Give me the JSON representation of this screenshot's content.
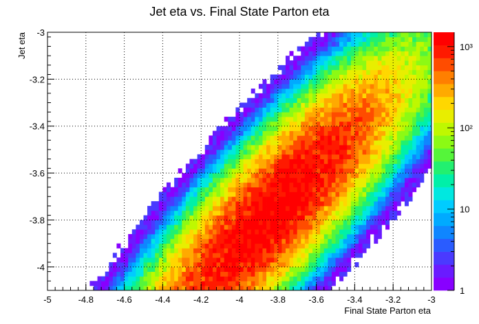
{
  "chart_data": {
    "type": "heatmap",
    "title": "Jet eta vs. Final State Parton eta",
    "xlabel": "Final State Parton eta",
    "ylabel": "Jet eta",
    "xlim": [
      -5,
      -3
    ],
    "ylim": [
      -4.1,
      -3
    ],
    "xticks": [
      "-5",
      "-4.8",
      "-4.6",
      "-4.4",
      "-4.2",
      "-4",
      "-3.8",
      "-3.6",
      "-3.4",
      "-3.2",
      "-3"
    ],
    "yticks": [
      "-3",
      "-3.2",
      "-3.4",
      "-3.6",
      "-3.8",
      "-4"
    ],
    "grid": true,
    "colorbar": {
      "scale": "log",
      "min": 1,
      "max": 1500,
      "tick_labels": [
        "1",
        "10",
        "10²",
        "10³"
      ],
      "tick_values": [
        1,
        10,
        100,
        1000
      ],
      "palette": [
        "#8800ff",
        "#6a1bff",
        "#4a3aff",
        "#2a5cff",
        "#0f86ff",
        "#00aaff",
        "#00ccff",
        "#00e8e0",
        "#00f0a8",
        "#22f070",
        "#55f53a",
        "#8cfa14",
        "#bff800",
        "#e8ee00",
        "#ffd700",
        "#ffaa00",
        "#ff7f00",
        "#ff4c00",
        "#ff1a00",
        "#ff0000"
      ]
    },
    "distribution": {
      "description_of_shape": "elongated diagonal band",
      "peak": {
        "x": -3.82,
        "y": -3.76,
        "count": 1500
      },
      "major_axis_direction": [
        0.75,
        0.66
      ],
      "sigma_major": 0.42,
      "sigma_minor": 0.11
    }
  }
}
